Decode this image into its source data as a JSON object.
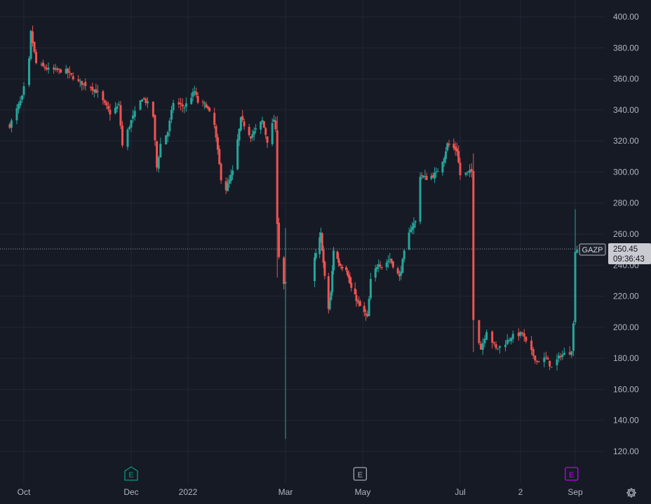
{
  "colors": {
    "background": "#161a25",
    "grid": "#232735",
    "up": "#26a69a",
    "down": "#ef5350",
    "axis_text": "#b2b5be",
    "last_price_bg": "#c9cbd1",
    "earnings_green": "#089981",
    "earnings_gray": "#a3a6af",
    "earnings_purple": "#c200f5"
  },
  "chart_data": {
    "type": "candlestick",
    "symbol": "GAZP",
    "last_price": "250.45",
    "countdown": "09:36:43",
    "y_ticks": [
      "400.00",
      "380.00",
      "360.00",
      "340.00",
      "320.00",
      "300.00",
      "280.00",
      "260.00",
      "240.00",
      "220.00",
      "200.00",
      "180.00",
      "160.00",
      "140.00",
      "120.00"
    ],
    "x_ticks": [
      "Oct",
      "Dec",
      "2022",
      "Mar",
      "May",
      "Jul",
      "2",
      "Sep"
    ],
    "ylim": [
      111,
      411
    ],
    "earnings_markers": [
      {
        "label": "E",
        "date": "2021-12-01",
        "style": "green"
      },
      {
        "label": "E",
        "date": "2022-04-29",
        "style": "gray"
      },
      {
        "label": "E",
        "date": "2022-08-30",
        "style": "purple"
      }
    ],
    "anchors": [
      [
        "2021-09-23",
        330
      ],
      [
        "2021-09-30",
        348
      ],
      [
        "2021-10-04",
        372
      ],
      [
        "2021-10-05",
        390
      ],
      [
        "2021-10-08",
        370
      ],
      [
        "2021-10-15",
        366
      ],
      [
        "2021-10-25",
        365
      ],
      [
        "2021-11-01",
        358
      ],
      [
        "2021-11-08",
        355
      ],
      [
        "2021-11-12",
        351
      ],
      [
        "2021-11-19",
        338
      ],
      [
        "2021-11-24",
        343
      ],
      [
        "2021-11-26",
        317
      ],
      [
        "2021-12-01",
        333
      ],
      [
        "2021-12-07",
        348
      ],
      [
        "2021-12-10",
        344
      ],
      [
        "2021-12-13",
        336
      ],
      [
        "2021-12-15",
        303
      ],
      [
        "2021-12-17",
        318
      ],
      [
        "2021-12-21",
        326
      ],
      [
        "2021-12-24",
        345
      ],
      [
        "2021-12-30",
        342
      ],
      [
        "2022-01-05",
        352
      ],
      [
        "2022-01-07",
        345
      ],
      [
        "2022-01-12",
        343
      ],
      [
        "2022-01-17",
        330
      ],
      [
        "2022-01-21",
        296
      ],
      [
        "2022-01-24",
        289
      ],
      [
        "2022-01-28",
        300
      ],
      [
        "2022-02-02",
        334
      ],
      [
        "2022-02-08",
        323
      ],
      [
        "2022-02-15",
        333
      ],
      [
        "2022-02-18",
        320
      ],
      [
        "2022-02-22",
        334
      ],
      [
        "2022-02-23",
        326
      ],
      [
        "2022-02-24",
        268
      ],
      [
        "2022-02-25",
        246
      ],
      [
        "2022-02-28",
        228
      ],
      [
        "2022-03-01",
        228
      ],
      [
        "2022-03-24",
        244
      ],
      [
        "2022-03-29",
        260
      ],
      [
        "2022-04-01",
        232
      ],
      [
        "2022-04-04",
        212
      ],
      [
        "2022-04-06",
        222
      ],
      [
        "2022-04-08",
        250
      ],
      [
        "2022-04-13",
        240
      ],
      [
        "2022-04-18",
        238
      ],
      [
        "2022-04-22",
        225
      ],
      [
        "2022-04-26",
        218
      ],
      [
        "2022-05-04",
        206
      ],
      [
        "2022-05-06",
        230
      ],
      [
        "2022-05-11",
        242
      ],
      [
        "2022-05-13",
        239
      ],
      [
        "2022-05-18",
        244
      ],
      [
        "2022-05-24",
        232
      ],
      [
        "2022-05-27",
        248
      ],
      [
        "2022-05-31",
        264
      ],
      [
        "2022-06-03",
        268
      ],
      [
        "2022-06-06",
        298
      ],
      [
        "2022-06-10",
        296
      ],
      [
        "2022-06-16",
        299
      ],
      [
        "2022-06-21",
        310
      ],
      [
        "2022-06-23",
        318
      ],
      [
        "2022-06-29",
        314
      ],
      [
        "2022-07-01",
        298
      ],
      [
        "2022-07-06",
        300
      ],
      [
        "2022-07-07",
        300
      ],
      [
        "2022-07-08",
        206
      ],
      [
        "2022-07-12",
        186
      ],
      [
        "2022-07-15",
        198
      ],
      [
        "2022-07-20",
        186
      ],
      [
        "2022-07-25",
        190
      ],
      [
        "2022-07-28",
        194
      ],
      [
        "2022-08-03",
        196
      ],
      [
        "2022-08-05",
        190
      ],
      [
        "2022-08-11",
        178
      ],
      [
        "2022-08-16",
        180
      ],
      [
        "2022-08-19",
        174
      ],
      [
        "2022-08-24",
        182
      ],
      [
        "2022-08-29",
        184
      ],
      [
        "2022-08-30",
        186
      ],
      [
        "2022-08-31",
        202
      ],
      [
        "2022-09-01",
        250
      ],
      [
        "2022-09-02",
        250.45
      ]
    ],
    "wicks": [
      [
        "2022-03-01",
        128,
        264
      ],
      [
        "2022-02-24",
        232,
        336
      ],
      [
        "2022-07-08",
        184,
        312
      ],
      [
        "2022-09-01",
        224,
        276
      ]
    ]
  }
}
